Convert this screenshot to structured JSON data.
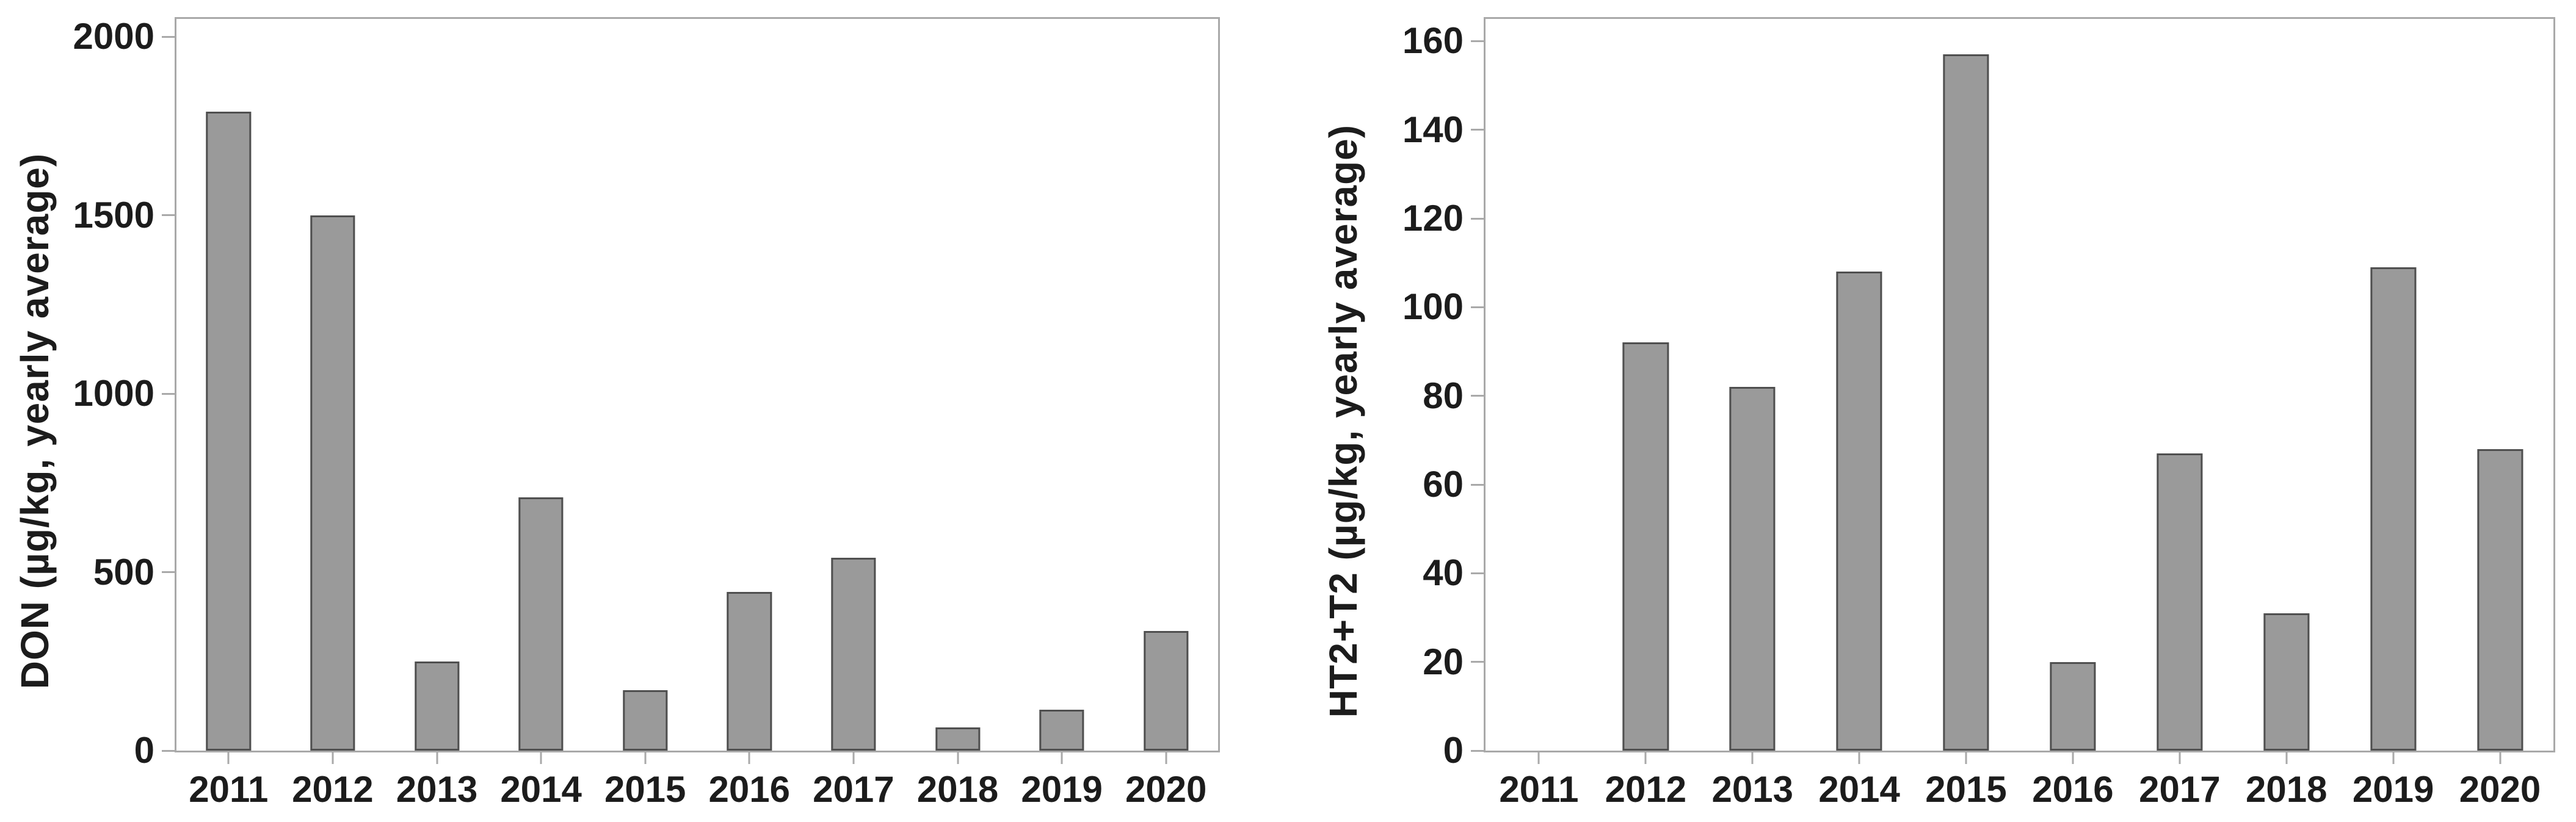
{
  "colors": {
    "background": "#ffffff",
    "bar_fill": "#9a9a9a",
    "bar_border": "#4f4f4f",
    "plot_border": "#a9a9a9",
    "tick_mark": "#a9a9a9",
    "label_text": "#1c1c1c"
  },
  "chart_data": [
    {
      "type": "bar",
      "title": "",
      "ylabel": "DON (µg/kg, yearly average)",
      "xlabel": "",
      "categories": [
        "2011",
        "2012",
        "2013",
        "2014",
        "2015",
        "2016",
        "2017",
        "2018",
        "2019",
        "2020"
      ],
      "values": [
        1790,
        1500,
        250,
        710,
        170,
        445,
        540,
        65,
        115,
        335
      ],
      "ylim": [
        0,
        2050
      ],
      "yticks": [
        0,
        500,
        1000,
        1500,
        2000
      ],
      "grid": false,
      "legend_position": "none",
      "bar_width_fraction": 0.43
    },
    {
      "type": "bar",
      "title": "",
      "ylabel": "HT2+T2 (µg/kg, yearly average)",
      "xlabel": "",
      "categories": [
        "2011",
        "2012",
        "2013",
        "2014",
        "2015",
        "2016",
        "2017",
        "2018",
        "2019",
        "2020"
      ],
      "values": [
        0,
        92,
        82,
        108,
        157,
        20,
        67,
        31,
        109,
        68
      ],
      "ylim": [
        0,
        165
      ],
      "yticks": [
        0,
        20,
        40,
        60,
        80,
        100,
        120,
        140,
        160
      ],
      "grid": false,
      "legend_position": "none",
      "bar_width_fraction": 0.43
    }
  ]
}
